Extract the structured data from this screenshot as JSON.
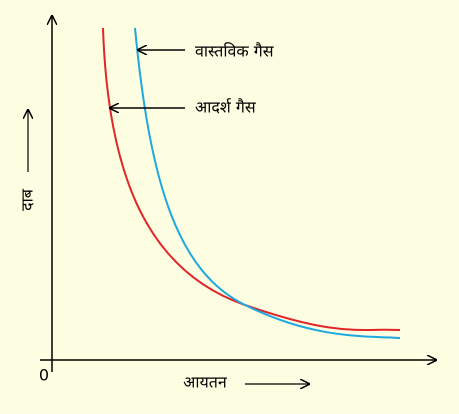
{
  "labels": {
    "real_gas": "वास्तविक गैस",
    "ideal_gas": "आदर्श गैस"
  },
  "axes": {
    "y_label": "दाब",
    "x_label": "आयतन",
    "origin": "0"
  }
}
